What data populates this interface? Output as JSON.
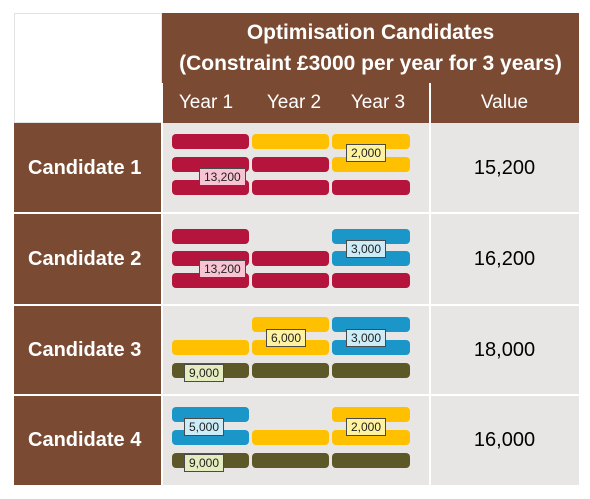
{
  "header": {
    "title_line1": "Optimisation Candidates",
    "title_line2": "(Constraint £3000 per year for 3 years)",
    "year1": "Year 1",
    "year2": "Year 2",
    "year3": "Year 3",
    "value": "Value"
  },
  "candidates": [
    {
      "name": "Candidate 1",
      "value": "15,200",
      "labels": [
        "13,200",
        "2,000"
      ]
    },
    {
      "name": "Candidate 2",
      "value": "16,200",
      "labels": [
        "13,200",
        "3,000"
      ]
    },
    {
      "name": "Candidate 3",
      "value": "18,000",
      "labels": [
        "9,000",
        "6,000",
        "3,000"
      ]
    },
    {
      "name": "Candidate 4",
      "value": "16,000",
      "labels": [
        "5,000",
        "9,000",
        "2,000"
      ]
    }
  ],
  "colors": {
    "header_brown": "#7b4a32",
    "row_grey": "#e8e6e4",
    "project_red": "#b5153c",
    "project_yellow": "#ffc000",
    "project_blue": "#1a96c8",
    "project_olive": "#5c5828"
  }
}
